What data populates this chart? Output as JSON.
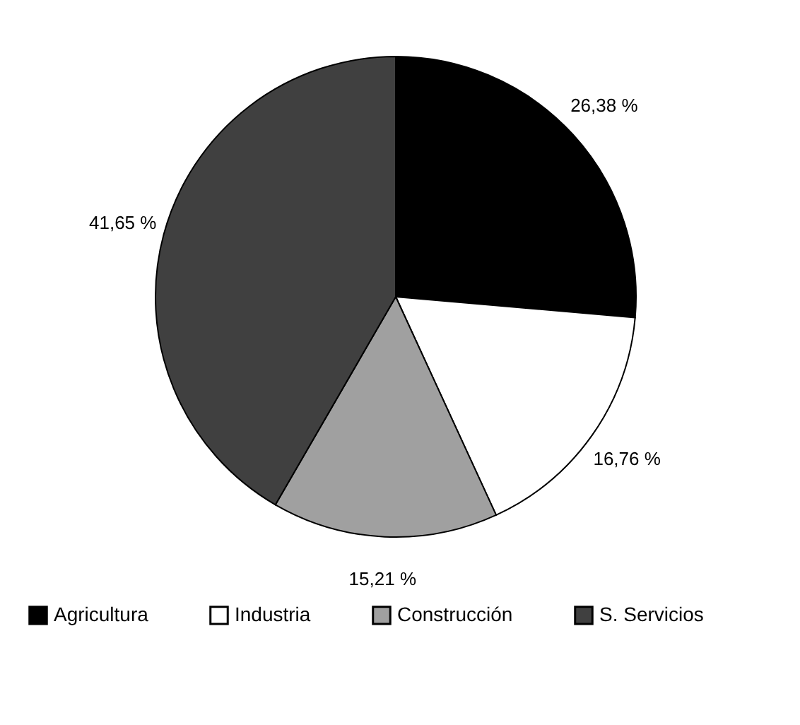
{
  "chart_data": {
    "type": "pie",
    "categories": [
      "Agricultura",
      "Industria",
      "Construcción",
      "S. Servicios"
    ],
    "values": [
      26.38,
      16.76,
      15.21,
      41.65
    ],
    "colors": [
      "#000000",
      "#ffffff",
      "#a0a0a0",
      "#404040"
    ],
    "value_labels": [
      "26,38 %",
      "16,76 %",
      "15,21 %",
      "41,65 %"
    ],
    "legend": "bottom"
  }
}
